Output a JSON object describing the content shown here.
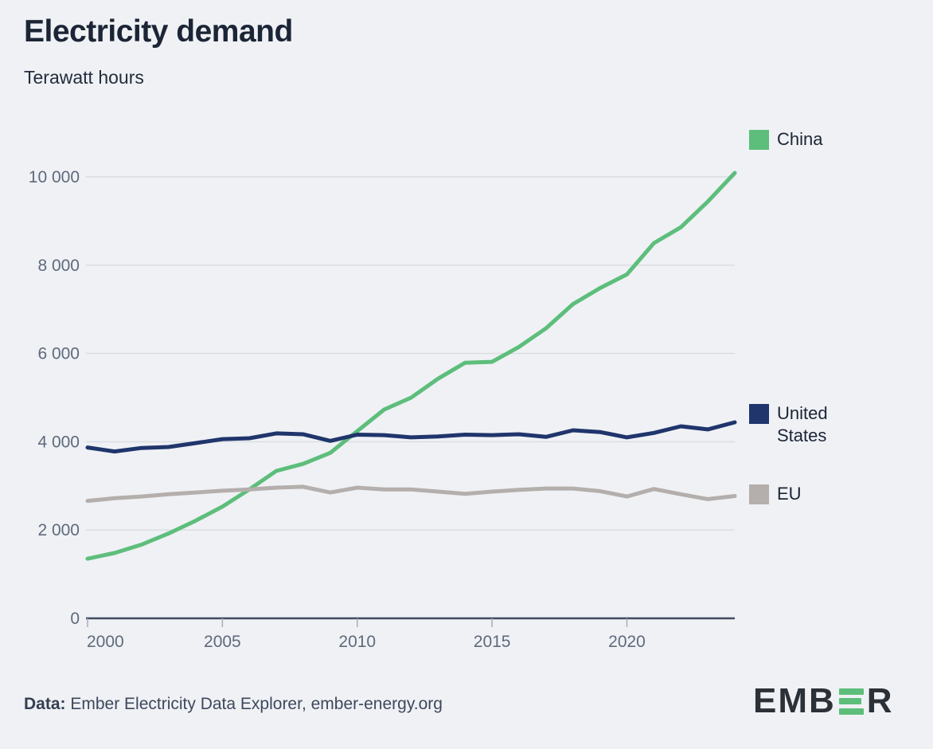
{
  "header": {
    "title": "Electricity demand",
    "subtitle": "Terawatt hours"
  },
  "legend": [
    {
      "label": "China",
      "color": "#5dbe7b"
    },
    {
      "label": "United States",
      "color": "#1f356b"
    },
    {
      "label": "EU",
      "color": "#b4afac"
    }
  ],
  "footer": {
    "source_label": "Data:",
    "source_text": " Ember Electricity Data Explorer, ember-energy.org"
  },
  "logo": {
    "text_left": "EMB",
    "text_right": "R",
    "green_e": "E"
  },
  "colors": {
    "background": "#eff1f5",
    "title_text": "#1b2535",
    "axis_label": "#5f6a7b",
    "gridline": "#d9dce1",
    "axis_line": "#414b5e",
    "tick_mark": "#a6adba",
    "china": "#5dbe7b",
    "united_states": "#1f356b",
    "eu": "#b4afac",
    "logo_dark": "#2c3138",
    "logo_green": "#5dbe7b"
  },
  "chart_data": {
    "type": "line",
    "title": "Electricity demand",
    "ylabel": "Terawatt hours",
    "xlabel": "",
    "grid": "horizontal",
    "legend_position": "right",
    "xlim": [
      2000,
      2024
    ],
    "ylim": [
      0,
      10600
    ],
    "x_ticks": [
      2000,
      2005,
      2010,
      2015,
      2020
    ],
    "y_ticks": [
      0,
      2000,
      4000,
      6000,
      8000,
      10000
    ],
    "y_tick_labels": [
      "0",
      "2 000",
      "4 000",
      "6 000",
      "8 000",
      "10 000"
    ],
    "x": [
      2000,
      2001,
      2002,
      2003,
      2004,
      2005,
      2006,
      2007,
      2008,
      2009,
      2010,
      2011,
      2012,
      2013,
      2014,
      2015,
      2016,
      2017,
      2018,
      2019,
      2020,
      2021,
      2022,
      2023,
      2024
    ],
    "series": [
      {
        "name": "China",
        "color": "#5dbe7b",
        "values": [
          1350,
          1480,
          1670,
          1920,
          2210,
          2530,
          2920,
          3340,
          3500,
          3750,
          4240,
          4730,
          5000,
          5430,
          5790,
          5810,
          6150,
          6570,
          7120,
          7480,
          7790,
          8500,
          8860,
          9440,
          10090
        ]
      },
      {
        "name": "United States",
        "color": "#1f356b",
        "values": [
          3870,
          3780,
          3860,
          3880,
          3970,
          4060,
          4080,
          4190,
          4170,
          4020,
          4160,
          4150,
          4100,
          4120,
          4160,
          4150,
          4170,
          4110,
          4260,
          4220,
          4100,
          4200,
          4350,
          4280,
          4440
        ]
      },
      {
        "name": "EU",
        "color": "#b4afac",
        "values": [
          2660,
          2720,
          2760,
          2810,
          2850,
          2890,
          2920,
          2960,
          2980,
          2850,
          2960,
          2920,
          2920,
          2870,
          2820,
          2870,
          2910,
          2940,
          2940,
          2880,
          2760,
          2930,
          2810,
          2700,
          2770
        ]
      }
    ]
  }
}
